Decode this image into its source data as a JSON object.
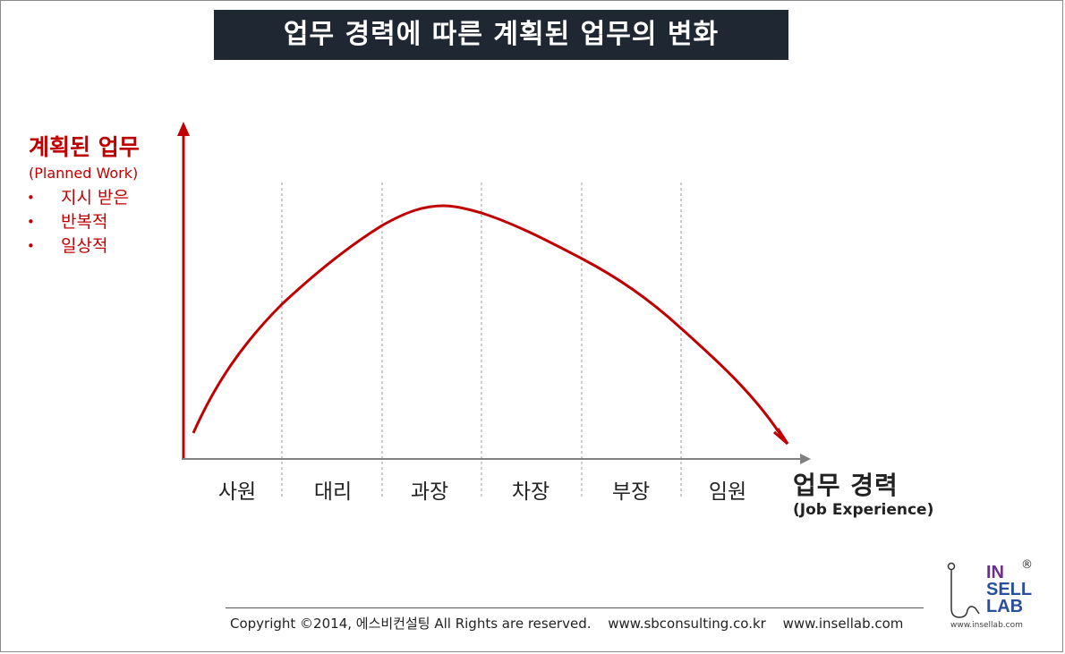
{
  "title": "업무 경력에 따른 계획된 업무의 변화",
  "y_axis": {
    "label": "계획된 업무",
    "sublabel": "(Planned Work)",
    "bullets": [
      "지시 받은",
      "반복적",
      "일상적"
    ],
    "bullet_marker": "•"
  },
  "x_axis": {
    "label": "업무 경력",
    "sublabel": "(Job Experience)",
    "categories": [
      "사원",
      "대리",
      "과장",
      "차장",
      "부장",
      "임원"
    ]
  },
  "colors": {
    "curve": "#c00000",
    "title_bg": "#1f2732",
    "axis_x": "#808080"
  },
  "footer": {
    "copyright": "Copyright ©2014, 에스비컨설팅 All Rights are reserved.",
    "url1": "www.sbconsulting.co.kr",
    "url2": "www.insellab.com"
  },
  "logo": {
    "line1": "IN",
    "line2": "SELL",
    "line3": "LAB",
    "reg": "®",
    "url": "www.insellab.com"
  }
}
